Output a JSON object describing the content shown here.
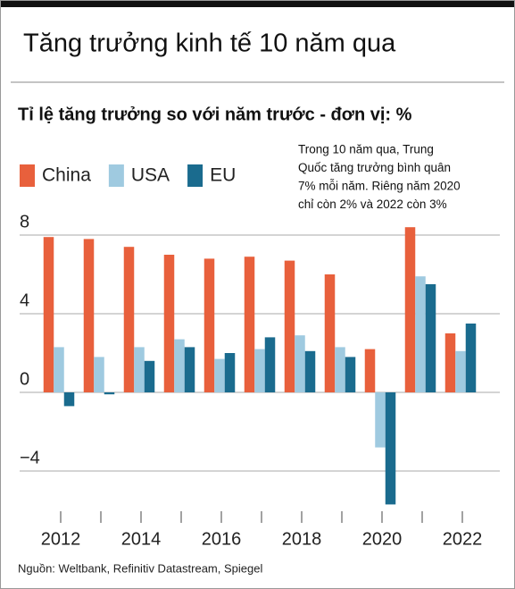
{
  "chart_data": {
    "type": "bar",
    "title": "Tăng trưởng kinh tế 10 năm qua",
    "subtitle": "Tỉ lệ tăng trưởng so với năm trước - đơn vị: %",
    "annotation": [
      "Trong 10 năm qua, Trung",
      "Quốc tăng trưởng bình quân",
      "7% mỗi năm. Riêng năm 2020",
      "chỉ còn 2% và 2022 còn 3%"
    ],
    "source": "Nguồn: Weltbank, Refinitiv Datastream, Spiegel",
    "categories": [
      "2012",
      null,
      "2014",
      null,
      "2016",
      null,
      "2018",
      null,
      "2020",
      null,
      "2022"
    ],
    "series": [
      {
        "name": "China",
        "color": "#e8603c",
        "values": [
          7.9,
          7.8,
          7.4,
          7.0,
          6.8,
          6.9,
          6.7,
          6.0,
          2.2,
          8.4,
          3.0
        ]
      },
      {
        "name": "USA",
        "color": "#9fcae0",
        "values": [
          2.3,
          1.8,
          2.3,
          2.7,
          1.7,
          2.2,
          2.9,
          2.3,
          -2.8,
          5.9,
          2.1
        ]
      },
      {
        "name": "EU",
        "color": "#1a6b8e",
        "values": [
          -0.7,
          -0.1,
          1.6,
          2.3,
          2.0,
          2.8,
          2.1,
          1.8,
          -5.7,
          5.5,
          3.5
        ]
      }
    ],
    "ylim": [
      -6,
      9.5
    ],
    "yticks": [
      {
        "value": -4,
        "label": "−4"
      },
      0,
      4,
      8
    ],
    "grid": true
  }
}
